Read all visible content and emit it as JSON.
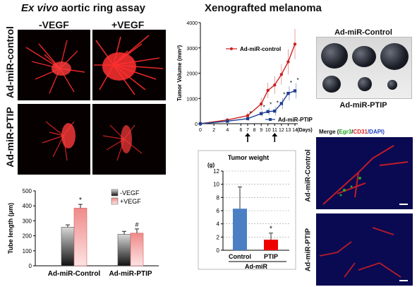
{
  "aortic": {
    "title_italic": "Ex vivo",
    "title_rest": " aortic ring assay",
    "col_labels": [
      "-VEGF",
      "+VEGF"
    ],
    "row_labels": [
      "Ad-miR-control",
      "Ad-miR-PTIP"
    ]
  },
  "xenograft": {
    "title": "Xenografted melanoma",
    "photo_label_top": "Ad-miR-Control",
    "photo_label_bottom": "Ad-miR-PTIP"
  },
  "fluor": {
    "merge_label": "Merge (",
    "merge_egr3": "Egr3",
    "merge_sep1": "/",
    "merge_cd31": "CD31",
    "merge_sep2": "/DAPI)",
    "row_labels": [
      "Ad-miR-Control",
      "Ad-miR-PTIP"
    ]
  },
  "colors": {
    "red_series": "#cc2020",
    "blue_series": "#1f3f8f",
    "bar_blue": "#4a7fc4",
    "bar_red": "#ee0000",
    "bar_gray": "#9a9a9a",
    "bar_pink": "#f08a8a",
    "fluor_bg": "#0a0a52",
    "micro_red": "#ff2a2a"
  },
  "chart_data": [
    {
      "id": "tube_length",
      "type": "bar",
      "ylabel": "Tube length (μm)",
      "yticks": [
        "0",
        "100",
        "200",
        "300",
        "400",
        "500"
      ],
      "ylim": [
        0,
        500
      ],
      "categories": [
        "Ad-miR-Control",
        "Ad-miR-PTIP"
      ],
      "series": [
        {
          "name": "-VEGF",
          "values": [
            258,
            210
          ],
          "errors": [
            15,
            20
          ]
        },
        {
          "name": "+VEGF",
          "values": [
            385,
            218
          ],
          "errors": [
            25,
            28
          ]
        }
      ],
      "annotations": [
        "*",
        "#"
      ],
      "legend_position": "top-right",
      "grid": false
    },
    {
      "id": "tumor_volume",
      "type": "line",
      "ylabel": "Tumor Volume (mm³)",
      "xlabel": "(Days)",
      "xticks": [
        "0",
        "2",
        "4",
        "6",
        "7",
        "8",
        "9",
        "10",
        "11",
        "12",
        "13",
        "14"
      ],
      "x": [
        0,
        4,
        7,
        9,
        10,
        11,
        12,
        13,
        14
      ],
      "yticks": [
        "0",
        "1000",
        "2000",
        "3000",
        "4000"
      ],
      "ylim": [
        0,
        4000
      ],
      "series": [
        {
          "name": "Ad-miR-control",
          "values": [
            0,
            150,
            320,
            780,
            1320,
            1530,
            1950,
            2450,
            3150
          ],
          "errors": [
            0,
            60,
            120,
            250,
            300,
            350,
            400,
            500,
            600
          ]
        },
        {
          "name": "Ad-miR-PTIP",
          "values": [
            0,
            100,
            200,
            400,
            480,
            500,
            800,
            1200,
            1300
          ],
          "errors": [
            0,
            40,
            80,
            120,
            150,
            180,
            220,
            280,
            300
          ]
        }
      ],
      "annotations": [
        "*",
        "*",
        "*",
        "*",
        "*",
        "*",
        "*"
      ],
      "arrows_at_days": [
        7,
        11
      ],
      "grid": false
    },
    {
      "id": "tumor_weight",
      "type": "bar",
      "title": "Tumor weight",
      "ylabel": "(g)",
      "yticks": [
        "0",
        "2",
        "4",
        "6",
        "8",
        "10",
        "12"
      ],
      "ylim": [
        0,
        12
      ],
      "categories": [
        "Control",
        "PTIP"
      ],
      "group_label": "Ad-miR",
      "values": [
        6.3,
        1.6
      ],
      "errors": [
        3.3,
        1.0
      ],
      "annotations": [
        "*"
      ],
      "grid": true
    }
  ]
}
